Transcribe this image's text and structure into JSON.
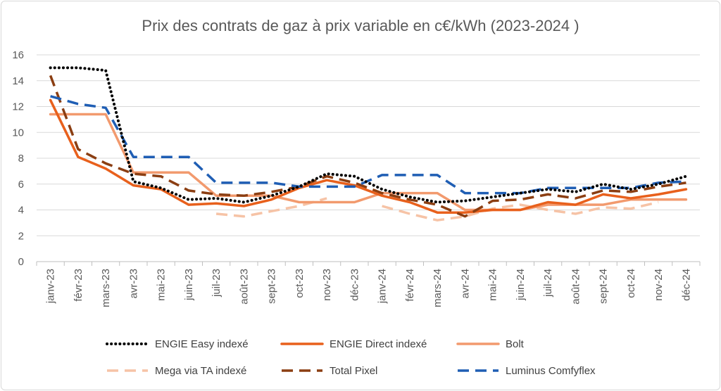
{
  "chart_data": {
    "type": "line",
    "title": "Prix des contrats de gaz à prix variable en c€/kWh (2023-2024 )",
    "xlabel": "",
    "ylabel": "",
    "ylim": [
      0,
      16
    ],
    "yticks": [
      0,
      2,
      4,
      6,
      8,
      10,
      12,
      14,
      16
    ],
    "grid": true,
    "legend_position": "bottom",
    "categories": [
      "janv-23",
      "févr-23",
      "mars-23",
      "avr-23",
      "mai-23",
      "juin-23",
      "juil-23",
      "août-23",
      "sept-23",
      "oct-23",
      "nov-23",
      "déc-23",
      "janv-24",
      "févr-24",
      "mars-24",
      "avr-24",
      "mai-24",
      "juin-24",
      "juil-24",
      "août-24",
      "sept-24",
      "oct-24",
      "nov-24",
      "déc-24"
    ],
    "series": [
      {
        "name": "ENGIE Easy indexé",
        "color": "#000000",
        "style": "dotted",
        "values": [
          15.0,
          15.0,
          14.8,
          6.2,
          5.7,
          4.8,
          4.9,
          4.6,
          5.1,
          5.8,
          6.8,
          6.6,
          5.6,
          5.0,
          4.6,
          4.7,
          5.0,
          5.3,
          5.6,
          5.4,
          6.0,
          5.6,
          6.0,
          6.6
        ]
      },
      {
        "name": "ENGIE Direct indexé",
        "color": "#e8601c",
        "style": "solid",
        "values": [
          12.5,
          8.1,
          7.2,
          5.9,
          5.6,
          4.4,
          4.5,
          4.3,
          4.8,
          5.7,
          6.3,
          5.9,
          5.1,
          4.6,
          3.8,
          3.8,
          4.0,
          4.0,
          4.6,
          4.4,
          5.2,
          4.9,
          5.2,
          5.6
        ]
      },
      {
        "name": "Bolt",
        "color": "#f29a6e",
        "style": "solid",
        "values": [
          11.4,
          11.4,
          11.4,
          6.9,
          6.9,
          6.9,
          5.1,
          5.1,
          5.1,
          4.6,
          4.6,
          4.6,
          5.3,
          5.3,
          5.3,
          4.0,
          4.0,
          4.0,
          4.4,
          4.4,
          4.4,
          4.8,
          4.8,
          4.8
        ]
      },
      {
        "name": "Mega via TA indexé",
        "color": "#f6c3a6",
        "style": "dashed",
        "values": [
          null,
          null,
          null,
          null,
          null,
          null,
          3.7,
          3.5,
          3.9,
          4.3,
          4.9,
          null,
          4.3,
          3.7,
          3.2,
          3.5,
          4.1,
          4.4,
          4.0,
          3.7,
          4.2,
          4.1,
          4.6,
          null
        ]
      },
      {
        "name": "Total Pixel",
        "color": "#8b3e12",
        "style": "dashed",
        "values": [
          14.4,
          8.7,
          7.6,
          6.8,
          6.6,
          5.5,
          5.2,
          5.1,
          5.4,
          5.8,
          6.6,
          6.1,
          5.3,
          4.8,
          4.4,
          3.5,
          4.7,
          4.8,
          5.2,
          4.9,
          5.5,
          5.4,
          5.8,
          6.1
        ]
      },
      {
        "name": "Luminus Comfyflex",
        "color": "#1f5eb4",
        "style": "dashed",
        "values": [
          12.8,
          12.2,
          11.9,
          8.1,
          8.1,
          8.1,
          6.1,
          6.1,
          6.1,
          5.8,
          5.8,
          5.8,
          6.7,
          6.7,
          6.7,
          5.3,
          5.3,
          5.3,
          5.7,
          5.7,
          5.7,
          5.7,
          6.1,
          6.2
        ]
      }
    ]
  }
}
